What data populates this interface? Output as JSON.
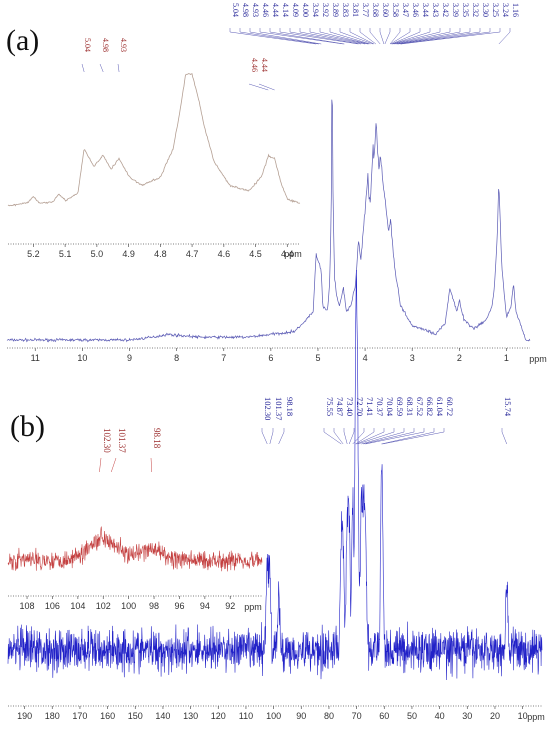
{
  "chart_data": [
    {
      "type": "line",
      "panel_label": "(a)",
      "xlabel": "ppm",
      "xlim": [
        11.6,
        0.5
      ],
      "x_ticks": [
        "11",
        "10",
        "9",
        "8",
        "7",
        "6",
        "5",
        "4",
        "3",
        "2",
        "1"
      ],
      "peak_labels": [
        "5.04",
        "4.98",
        "4.93",
        "4.46",
        "4.44",
        "4.14",
        "4.09",
        "4.00",
        "3.94",
        "3.92",
        "3.89",
        "3.83",
        "3.81",
        "3.77",
        "3.68",
        "3.60",
        "3.58",
        "3.47",
        "3.46",
        "3.44",
        "3.43",
        "3.42",
        "3.39",
        "3.35",
        "3.32",
        "3.30",
        "3.25",
        "3.24",
        "1.16"
      ],
      "series": [
        {
          "x": [
            11.5,
            9.0,
            8.5,
            8.2,
            7.5,
            6.5,
            6.0,
            5.5,
            5.3,
            5.1,
            5.04,
            4.98,
            4.93,
            4.9,
            4.8,
            4.75,
            4.72,
            4.7,
            4.68,
            4.65,
            4.6,
            4.55,
            4.46,
            4.44,
            4.4,
            4.3,
            4.2,
            4.14,
            4.09,
            4.04,
            4.0,
            3.94,
            3.92,
            3.89,
            3.83,
            3.81,
            3.77,
            3.7,
            3.68,
            3.6,
            3.58,
            3.5,
            3.46,
            3.43,
            3.4,
            3.35,
            3.3,
            3.25,
            3.0,
            2.8,
            2.5,
            2.3,
            2.2,
            2.05,
            2.0,
            1.9,
            1.7,
            1.5,
            1.4,
            1.3,
            1.25,
            1.2,
            1.16,
            1.1,
            1.0,
            0.9,
            0.85,
            0.8,
            0.6
          ],
          "y": [
            0.0,
            0.0,
            0.01,
            0.02,
            0.01,
            0.01,
            0.02,
            0.03,
            0.06,
            0.1,
            0.3,
            0.27,
            0.24,
            0.12,
            0.1,
            0.2,
            0.45,
            1.0,
            0.5,
            0.22,
            0.15,
            0.12,
            0.18,
            0.16,
            0.1,
            0.12,
            0.2,
            0.35,
            0.28,
            0.38,
            0.45,
            0.58,
            0.5,
            0.48,
            0.68,
            0.62,
            0.76,
            0.58,
            0.65,
            0.52,
            0.5,
            0.38,
            0.42,
            0.36,
            0.3,
            0.22,
            0.18,
            0.12,
            0.05,
            0.04,
            0.02,
            0.06,
            0.18,
            0.1,
            0.14,
            0.07,
            0.04,
            0.06,
            0.08,
            0.12,
            0.2,
            0.35,
            0.55,
            0.26,
            0.08,
            0.12,
            0.2,
            0.1,
            0.01
          ]
        }
      ],
      "inset": {
        "color": "#b49f93",
        "xlabel": "ppm",
        "xlim": [
          5.28,
          4.36
        ],
        "x_ticks": [
          "5.2",
          "5.1",
          "5.0",
          "4.9",
          "4.8",
          "4.7",
          "4.6",
          "4.5",
          "4.4"
        ],
        "peak_labels": [
          "5.04",
          "4.98",
          "4.93",
          "4.46",
          "4.44"
        ],
        "x": [
          5.28,
          5.22,
          5.2,
          5.18,
          5.14,
          5.12,
          5.1,
          5.06,
          5.04,
          5.01,
          4.98,
          4.955,
          4.93,
          4.9,
          4.86,
          4.8,
          4.76,
          4.74,
          4.72,
          4.7,
          4.68,
          4.66,
          4.63,
          4.58,
          4.52,
          4.48,
          4.46,
          4.44,
          4.42,
          4.4,
          4.36
        ],
        "y": [
          0.03,
          0.05,
          0.1,
          0.05,
          0.06,
          0.12,
          0.07,
          0.12,
          0.45,
          0.32,
          0.4,
          0.3,
          0.38,
          0.25,
          0.18,
          0.24,
          0.45,
          0.7,
          1.0,
          1.0,
          0.82,
          0.6,
          0.35,
          0.18,
          0.14,
          0.25,
          0.4,
          0.38,
          0.2,
          0.08,
          0.05
        ]
      }
    },
    {
      "type": "line",
      "panel_label": "(b)",
      "xlabel": "ppm",
      "xlim": [
        196,
        3
      ],
      "x_ticks": [
        "190",
        "180",
        "170",
        "160",
        "150",
        "140",
        "130",
        "120",
        "110",
        "100",
        "90",
        "80",
        "70",
        "60",
        "50",
        "40",
        "30",
        "20",
        "10"
      ],
      "peak_labels": [
        "102.30",
        "101.37",
        "98.18",
        "75.55",
        "74.87",
        "73.40",
        "72.70",
        "71.41",
        "70.37",
        "70.04",
        "69.59",
        "68.31",
        "67.52",
        "66.82",
        "61.04",
        "60.72",
        "15.74"
      ],
      "series": [
        {
          "name": "",
          "peaks_x": [
            102.3,
            101.37,
            98.18,
            75.55,
            74.87,
            73.4,
            72.7,
            71.41,
            70.37,
            70.04,
            69.59,
            68.31,
            67.52,
            66.82,
            61.04,
            60.72,
            15.74
          ],
          "peaks_y": [
            0.55,
            0.45,
            0.3,
            0.6,
            0.55,
            0.65,
            0.7,
            0.8,
            0.98,
            1.0,
            0.9,
            0.75,
            0.7,
            0.65,
            0.6,
            0.55,
            0.4
          ],
          "noise_level": 0.1
        }
      ],
      "inset": {
        "color": "#c44040",
        "xlabel": "ppm",
        "xlim": [
          109.5,
          89.5
        ],
        "x_ticks": [
          "108",
          "106",
          "104",
          "102",
          "100",
          "98",
          "96",
          "94",
          "92"
        ],
        "peak_labels": [
          "102.30",
          "101.37",
          "98.18"
        ]
      }
    }
  ]
}
